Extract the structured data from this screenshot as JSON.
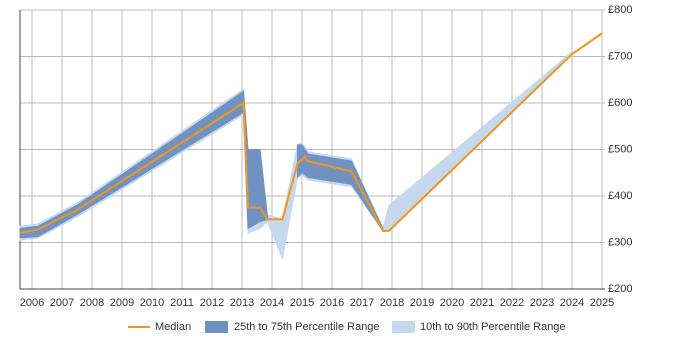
{
  "chart_data": {
    "type": "line",
    "x": [
      2005.6,
      2006.2,
      2007.5,
      2013.05,
      2013.2,
      2013.6,
      2013.85,
      2014.35,
      2014.85,
      2015.0,
      2015.1,
      2015.2,
      2016.65,
      2017.7,
      2017.9,
      2024.0,
      2025.0
    ],
    "series": [
      {
        "name": "Median",
        "color": "#f0961e",
        "values": [
          320,
          328,
          370,
          600,
          375,
          375,
          350,
          350,
          470,
          478,
          485,
          475,
          453,
          325,
          325,
          705,
          750
        ]
      },
      {
        "name": "25th to 75th Percentile Range",
        "color": "#6f92c2",
        "lower": [
          310,
          313,
          360,
          580,
          330,
          345,
          350,
          null,
          440,
          450,
          445,
          440,
          425,
          325,
          null,
          null,
          null
        ],
        "upper": [
          330,
          335,
          380,
          625,
          500,
          500,
          355,
          null,
          510,
          510,
          500,
          490,
          475,
          330,
          null,
          null,
          null
        ]
      },
      {
        "name": "10th to 90th Percentile Range",
        "color": "#c6d8ee",
        "lower": [
          305,
          310,
          355,
          575,
          320,
          330,
          345,
          265,
          440,
          445,
          440,
          435,
          420,
          325,
          325,
          705,
          null
        ],
        "upper": [
          335,
          340,
          385,
          630,
          500,
          500,
          360,
          350,
          510,
          515,
          505,
          495,
          480,
          330,
          380,
          710,
          null
        ]
      }
    ],
    "xlim": [
      2005.6,
      2025.1
    ],
    "ylim": [
      200,
      800
    ],
    "xticks": [
      2006,
      2007,
      2008,
      2009,
      2010,
      2011,
      2012,
      2013,
      2014,
      2015,
      2016,
      2017,
      2018,
      2019,
      2020,
      2021,
      2022,
      2023,
      2024,
      2025
    ],
    "yticks": [
      {
        "value": 200,
        "label": "£200"
      },
      {
        "value": 300,
        "label": "£300"
      },
      {
        "value": 400,
        "label": "£400"
      },
      {
        "value": 500,
        "label": "£500"
      },
      {
        "value": 600,
        "label": "£600"
      },
      {
        "value": 700,
        "label": "£700"
      },
      {
        "value": 800,
        "label": "£800"
      }
    ],
    "grid": true
  }
}
